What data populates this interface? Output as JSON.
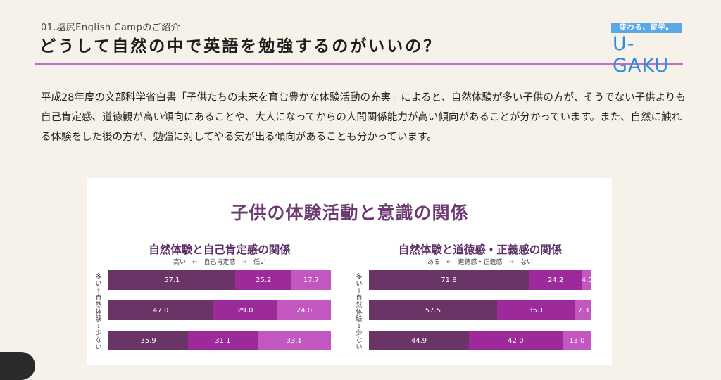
{
  "header": {
    "subtitle": "01.塩尻English Campのご紹介",
    "title": "どうして自然の中で英語を勉強するのがいいの？",
    "logo_tag": "変わる、留学。",
    "logo_text": "U-GAKU"
  },
  "intro": {
    "text": "平成28年度の文部科学省白書「子供たちの未来を育む豊かな体験活動の充実」によると、自然体験が多い子供の方が、そうでない子供よりも自己肯定感、道徳観が高い傾向にあることや、大人になってからの人間関係能力が高い傾向があることが分かっています。また、自然に触れる体験をした後の方が、勉強に対してやる気が出る傾向があることも分かっています。"
  },
  "colors": {
    "accent": "#c66ad0",
    "seg1": "#6b3466",
    "seg2": "#9c2a9a",
    "seg3": "#c257c0",
    "logo": "#2b8fd8"
  },
  "chart_data": {
    "type": "bar",
    "stacked": true,
    "orientation": "horizontal",
    "title": "子供の体験活動と意識の関係",
    "panels": [
      {
        "title": "自然体験と自己肯定感の関係",
        "scale_label": "高い　←　自己肯定感　→　低い",
        "y_axis_label": "多い↑自然体験↓少ない",
        "rows": [
          {
            "values": [
              57.1,
              25.2,
              17.7
            ]
          },
          {
            "values": [
              47.0,
              29.0,
              24.0
            ]
          },
          {
            "values": [
              35.9,
              31.1,
              33.1
            ]
          }
        ]
      },
      {
        "title": "自然体験と道徳感・正義感の関係",
        "scale_label": "ある　←　道徳感・正義感　→　ない",
        "y_axis_label": "多い↑自然体験↓少ない",
        "rows": [
          {
            "values": [
              71.8,
              24.2,
              4.0
            ]
          },
          {
            "values": [
              57.5,
              35.1,
              7.3
            ]
          },
          {
            "values": [
              44.9,
              42.0,
              13.0
            ]
          }
        ]
      }
    ]
  }
}
